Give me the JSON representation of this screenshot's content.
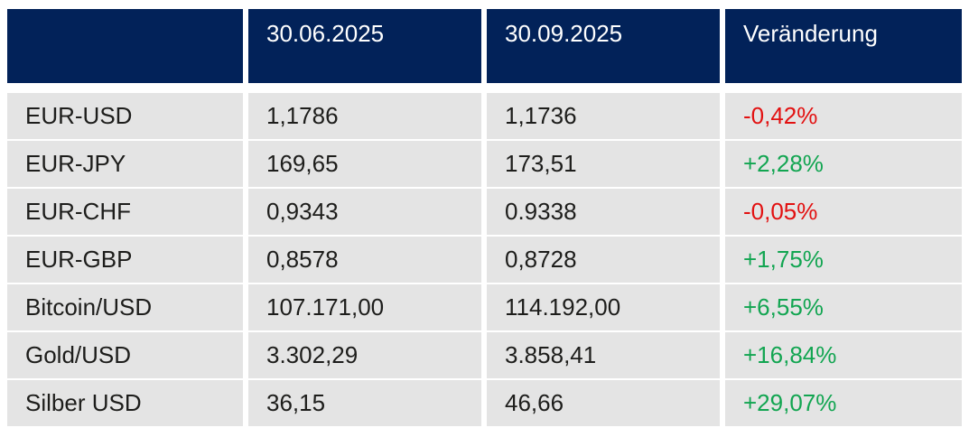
{
  "colors": {
    "header_bg": "#022259",
    "header_text": "#ffffff",
    "row_bg": "#e4e4e4",
    "body_text": "#1d1d1b",
    "negative": "#e21111",
    "positive": "#12a551"
  },
  "table": {
    "header": {
      "label_col": "",
      "date1": "30.06.2025",
      "date2": "30.09.2025",
      "change": "Veränderung"
    },
    "rows": [
      {
        "label": "EUR-USD",
        "v1": "1,1786",
        "v2": "1,1736",
        "change": "-0,42%",
        "direction": "down"
      },
      {
        "label": "EUR-JPY",
        "v1": "169,65",
        "v2": "173,51",
        "change": "+2,28%",
        "direction": "up"
      },
      {
        "label": "EUR-CHF",
        "v1": "0,9343",
        "v2": "0.9338",
        "change": "-0,05%",
        "direction": "down"
      },
      {
        "label": "EUR-GBP",
        "v1": "0,8578",
        "v2": "0,8728",
        "change": "+1,75%",
        "direction": "up"
      },
      {
        "label": "Bitcoin/USD",
        "v1": "107.171,00",
        "v2": "114.192,00",
        "change": "+6,55%",
        "direction": "up"
      },
      {
        "label": "Gold/USD",
        "v1": "3.302,29",
        "v2": "3.858,41",
        "change": "+16,84%",
        "direction": "up"
      },
      {
        "label": "Silber USD",
        "v1": "36,15",
        "v2": "46,66",
        "change": "+29,07%",
        "direction": "up"
      }
    ]
  },
  "chart_data": {
    "type": "table",
    "columns": [
      "",
      "30.06.2025",
      "30.09.2025",
      "Veränderung"
    ],
    "rows": [
      [
        "EUR-USD",
        "1,1786",
        "1,1736",
        "-0,42%"
      ],
      [
        "EUR-JPY",
        "169,65",
        "173,51",
        "+2,28%"
      ],
      [
        "EUR-CHF",
        "0,9343",
        "0.9338",
        "-0,05%"
      ],
      [
        "EUR-GBP",
        "0,8578",
        "0,8728",
        "+1,75%"
      ],
      [
        "Bitcoin/USD",
        "107.171,00",
        "114.192,00",
        "+6,55%"
      ],
      [
        "Gold/USD",
        "3.302,29",
        "3.858,41",
        "+16,84%"
      ],
      [
        "Silber USD",
        "36,15",
        "46,66",
        "+29,07%"
      ]
    ],
    "notes": "Negative change values rendered red (#e21111), positive rendered green (#12a551)."
  }
}
